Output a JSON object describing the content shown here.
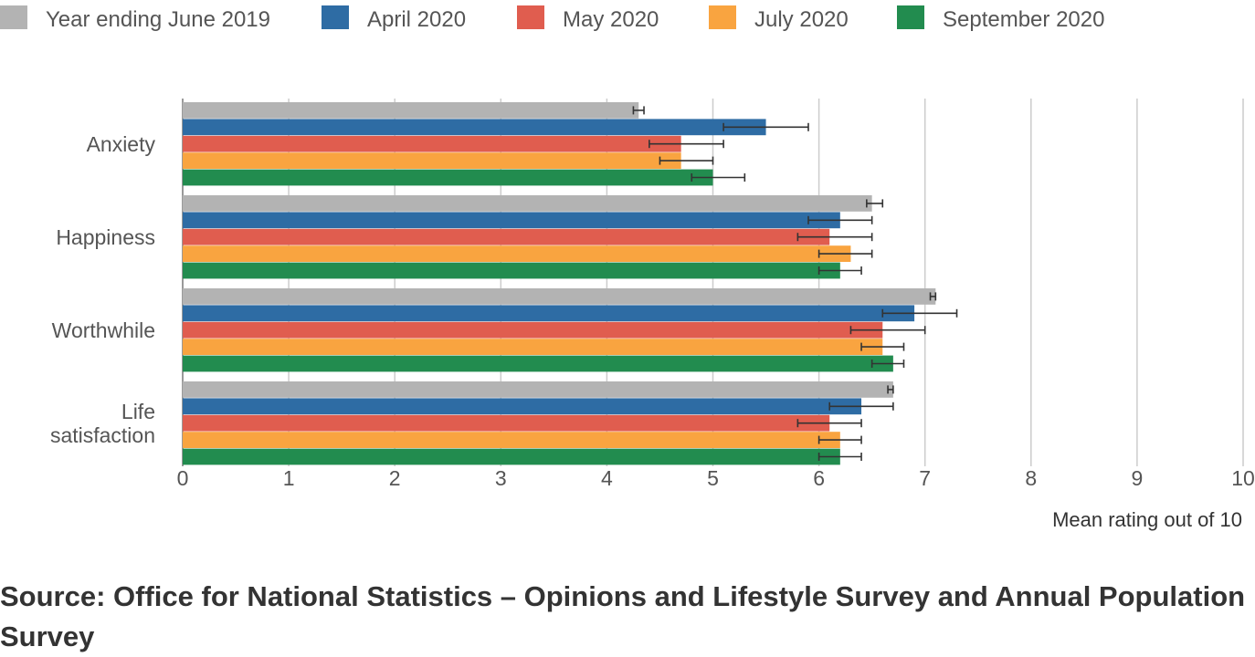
{
  "source_note": "Source: Office for National Statistics – Opinions and Lifestyle Survey and Annual Population Survey",
  "chart_data": {
    "type": "bar",
    "orientation": "horizontal",
    "categories": [
      "Anxiety",
      "Happiness",
      "Worthwhile",
      "Life satisfaction"
    ],
    "category_lines": [
      [
        "Anxiety"
      ],
      [
        "Happiness"
      ],
      [
        "Worthwhile"
      ],
      [
        "Life",
        "satisfaction"
      ]
    ],
    "series": [
      {
        "name": "Year ending June 2019",
        "color": "#b3b3b3",
        "values": [
          4.3,
          6.5,
          7.1,
          6.7
        ],
        "error_low": [
          4.25,
          6.45,
          7.05,
          6.65
        ],
        "error_high": [
          4.35,
          6.6,
          7.1,
          6.7
        ]
      },
      {
        "name": "April 2020",
        "color": "#2e6ca4",
        "values": [
          5.5,
          6.2,
          6.9,
          6.4
        ],
        "error_low": [
          5.1,
          5.9,
          6.6,
          6.1
        ],
        "error_high": [
          5.9,
          6.5,
          7.3,
          6.7
        ]
      },
      {
        "name": "May 2020",
        "color": "#e05d4f",
        "values": [
          4.7,
          6.1,
          6.6,
          6.1
        ],
        "error_low": [
          4.4,
          5.8,
          6.3,
          5.8
        ],
        "error_high": [
          5.1,
          6.5,
          7.0,
          6.4
        ]
      },
      {
        "name": "July 2020",
        "color": "#f9a440",
        "values": [
          4.7,
          6.3,
          6.6,
          6.2
        ],
        "error_low": [
          4.5,
          6.0,
          6.4,
          6.0
        ],
        "error_high": [
          5.0,
          6.5,
          6.8,
          6.4
        ]
      },
      {
        "name": "September 2020",
        "color": "#228c4f",
        "values": [
          5.0,
          6.2,
          6.7,
          6.2
        ],
        "error_low": [
          4.8,
          6.0,
          6.5,
          6.0
        ],
        "error_high": [
          5.3,
          6.4,
          6.8,
          6.4
        ]
      }
    ],
    "xlim": [
      0,
      10
    ],
    "xticks": [
      "0",
      "1",
      "2",
      "3",
      "4",
      "5",
      "6",
      "7",
      "8",
      "9",
      "10"
    ],
    "xlabel": "Mean rating out of 10",
    "grid": true,
    "legend_position": "top"
  }
}
